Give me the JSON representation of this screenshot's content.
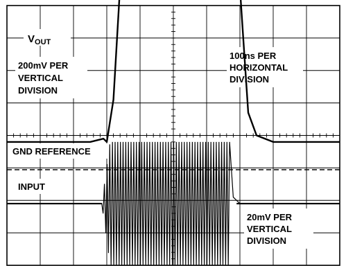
{
  "chart_data": {
    "type": "line",
    "title": "",
    "xlabel": "",
    "ylabel": "",
    "grid": true,
    "divisions": {
      "horizontal": 10,
      "vertical": 8
    },
    "annotations": {
      "vout_main": "V",
      "vout_sub": "OUT",
      "vertical_scale_top": [
        "200mV PER",
        "VERTICAL",
        "DIVISION"
      ],
      "horizontal_scale": [
        "100ns PER",
        "HORIZONTAL",
        "DIVISION"
      ],
      "gnd_reference": "GND REFERENCE",
      "input": "INPUT",
      "vertical_scale_bottom": [
        "20mV PER",
        "VERTICAL",
        "DIVISION"
      ]
    },
    "series": [
      {
        "name": "",
        "unit_x": "ns",
        "unit_y": "mV",
        "x": [
          0,
          250,
          290,
          300,
          320,
          340,
          370,
          400,
          600,
          650,
          700,
          710,
          725,
          750,
          800,
          1000
        ],
        "y": [
          0,
          0,
          20,
          0,
          260,
          960,
          1200,
          1210,
          1210,
          1200,
          950,
          640,
          180,
          40,
          0,
          0
        ]
      },
      {
        "name": "",
        "unit_x": "ns",
        "unit_y": "mV",
        "x": [
          0,
          280,
          285,
          660,
          680,
          700,
          1000
        ],
        "y": [
          0,
          0,
          0,
          0,
          4,
          0,
          0
        ],
        "burst": {
          "x_start": 285,
          "x_end": 670,
          "amplitude_mv": 38,
          "period_ns": 8
        }
      }
    ]
  },
  "colors": {
    "trace": "#000000",
    "grid": "#000000",
    "background": "#ffffff"
  }
}
